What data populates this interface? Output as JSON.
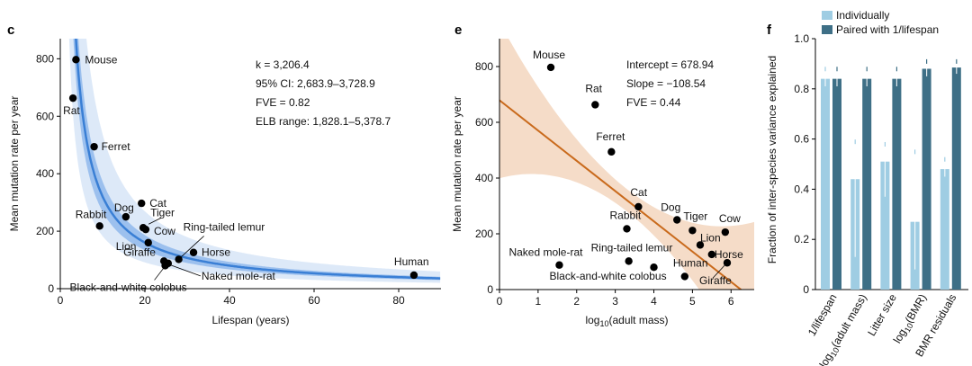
{
  "chart_data": [
    {
      "panel": "c",
      "type": "scatter",
      "xlabel": "Lifespan (years)",
      "ylabel": "Mean mutation rate per year",
      "xlim": [
        0,
        90
      ],
      "ylim": [
        0,
        870
      ],
      "xticks": [
        "0",
        "20",
        "40",
        "60",
        "80"
      ],
      "xtick_values": [
        0,
        20,
        40,
        60,
        80
      ],
      "yticks": [
        "0",
        "200",
        "400",
        "600",
        "800"
      ],
      "ytick_values": [
        0,
        200,
        400,
        600,
        800
      ],
      "fit": {
        "type": "k/x",
        "k": 3206.4,
        "ci_low": 2683.9,
        "ci_high": 3728.9,
        "elb_low": 1828.1,
        "elb_high": 5378.7,
        "color": "#3a7fd5",
        "band_color": "#dde9f8",
        "ci_color": "#9cc0ee"
      },
      "annotations": [
        "k = 3,206.4",
        "95% CI: 2,683.9–3,728.9",
        "FVE = 0.82",
        "ELB range: 1,828.1–5,378.7"
      ],
      "points": [
        {
          "name": "Mouse",
          "x": 3.7,
          "y": 797
        },
        {
          "name": "Rat",
          "x": 3.0,
          "y": 663
        },
        {
          "name": "Ferret",
          "x": 8.0,
          "y": 494
        },
        {
          "name": "Cat",
          "x": 19.2,
          "y": 297
        },
        {
          "name": "Dog",
          "x": 15.5,
          "y": 250
        },
        {
          "name": "Tiger",
          "x": 19.6,
          "y": 212
        },
        {
          "name": "Cow",
          "x": 20.2,
          "y": 206
        },
        {
          "name": "Rabbit",
          "x": 9.3,
          "y": 218
        },
        {
          "name": "Lion",
          "x": 20.8,
          "y": 160
        },
        {
          "name": "Ring-tailed lemur",
          "x": 28.0,
          "y": 102
        },
        {
          "name": "Horse",
          "x": 31.5,
          "y": 126
        },
        {
          "name": "Giraffe",
          "x": 24.5,
          "y": 96
        },
        {
          "name": "Black-and-white colobus",
          "x": 24.8,
          "y": 80
        },
        {
          "name": "Naked mole-rat",
          "x": 25.5,
          "y": 88
        },
        {
          "name": "Human",
          "x": 83.6,
          "y": 47
        }
      ]
    },
    {
      "panel": "e",
      "type": "scatter",
      "xlabel": "log10(adult mass)",
      "ylabel": "Mean mutation rate per year",
      "xlim": [
        0,
        6.6
      ],
      "ylim": [
        0,
        900
      ],
      "xticks": [
        "0",
        "1",
        "2",
        "3",
        "4",
        "5",
        "6"
      ],
      "xtick_values": [
        0,
        1,
        2,
        3,
        4,
        5,
        6
      ],
      "yticks": [
        "0",
        "200",
        "400",
        "600",
        "800"
      ],
      "ytick_values": [
        0,
        200,
        400,
        600,
        800
      ],
      "fit": {
        "type": "linear",
        "intercept": 678.94,
        "slope": -108.54,
        "color": "#c96a1c",
        "band_color": "#f5dcc8"
      },
      "annotations": [
        "Intercept = 678.94",
        "Slope = −108.54",
        "FVE = 0.44"
      ],
      "points": [
        {
          "name": "Mouse",
          "x": 1.33,
          "y": 797
        },
        {
          "name": "Rat",
          "x": 2.48,
          "y": 663
        },
        {
          "name": "Ferret",
          "x": 2.9,
          "y": 494
        },
        {
          "name": "Cat",
          "x": 3.6,
          "y": 297
        },
        {
          "name": "Rabbit",
          "x": 3.3,
          "y": 218
        },
        {
          "name": "Dog",
          "x": 4.6,
          "y": 250
        },
        {
          "name": "Tiger",
          "x": 5.0,
          "y": 212
        },
        {
          "name": "Cow",
          "x": 5.85,
          "y": 206
        },
        {
          "name": "Lion",
          "x": 5.2,
          "y": 160
        },
        {
          "name": "Horse",
          "x": 5.5,
          "y": 126
        },
        {
          "name": "Giraffe",
          "x": 5.9,
          "y": 96
        },
        {
          "name": "Naked mole-rat",
          "x": 1.55,
          "y": 88
        },
        {
          "name": "Ring-tailed lemur",
          "x": 3.35,
          "y": 102
        },
        {
          "name": "Black-and-white colobus",
          "x": 4.0,
          "y": 80
        },
        {
          "name": "Human",
          "x": 4.8,
          "y": 47
        }
      ]
    },
    {
      "panel": "f",
      "type": "bar",
      "ylabel": "Fraction of inter-species variance explained",
      "ylim": [
        0,
        1.0
      ],
      "yticks": [
        "0",
        "0.2",
        "0.4",
        "0.6",
        "0.8",
        "1.0"
      ],
      "ytick_values": [
        0,
        0.2,
        0.4,
        0.6,
        0.8,
        1.0
      ],
      "categories": [
        "1/lifespan",
        "log10(adult mass)",
        "Litter size",
        "log10(BMR)",
        "BMR residuals"
      ],
      "legend": [
        "Individually",
        "Paired with 1/lifespan"
      ],
      "series": [
        {
          "name": "Individually",
          "color": "#9fcde3",
          "values": [
            0.84,
            0.44,
            0.51,
            0.27,
            0.48
          ],
          "err_low": [
            0.81,
            0.13,
            0.37,
            0.08,
            0.45
          ],
          "err_high": [
            0.87,
            0.58,
            0.57,
            0.54,
            0.51
          ]
        },
        {
          "name": "Paired with 1/lifespan",
          "color": "#3e6f86",
          "values": [
            0.84,
            0.84,
            0.84,
            0.88,
            0.885
          ],
          "err_low": [
            0.81,
            0.81,
            0.81,
            0.85,
            0.86
          ],
          "err_high": [
            0.87,
            0.87,
            0.87,
            0.9,
            0.9
          ]
        }
      ]
    }
  ]
}
